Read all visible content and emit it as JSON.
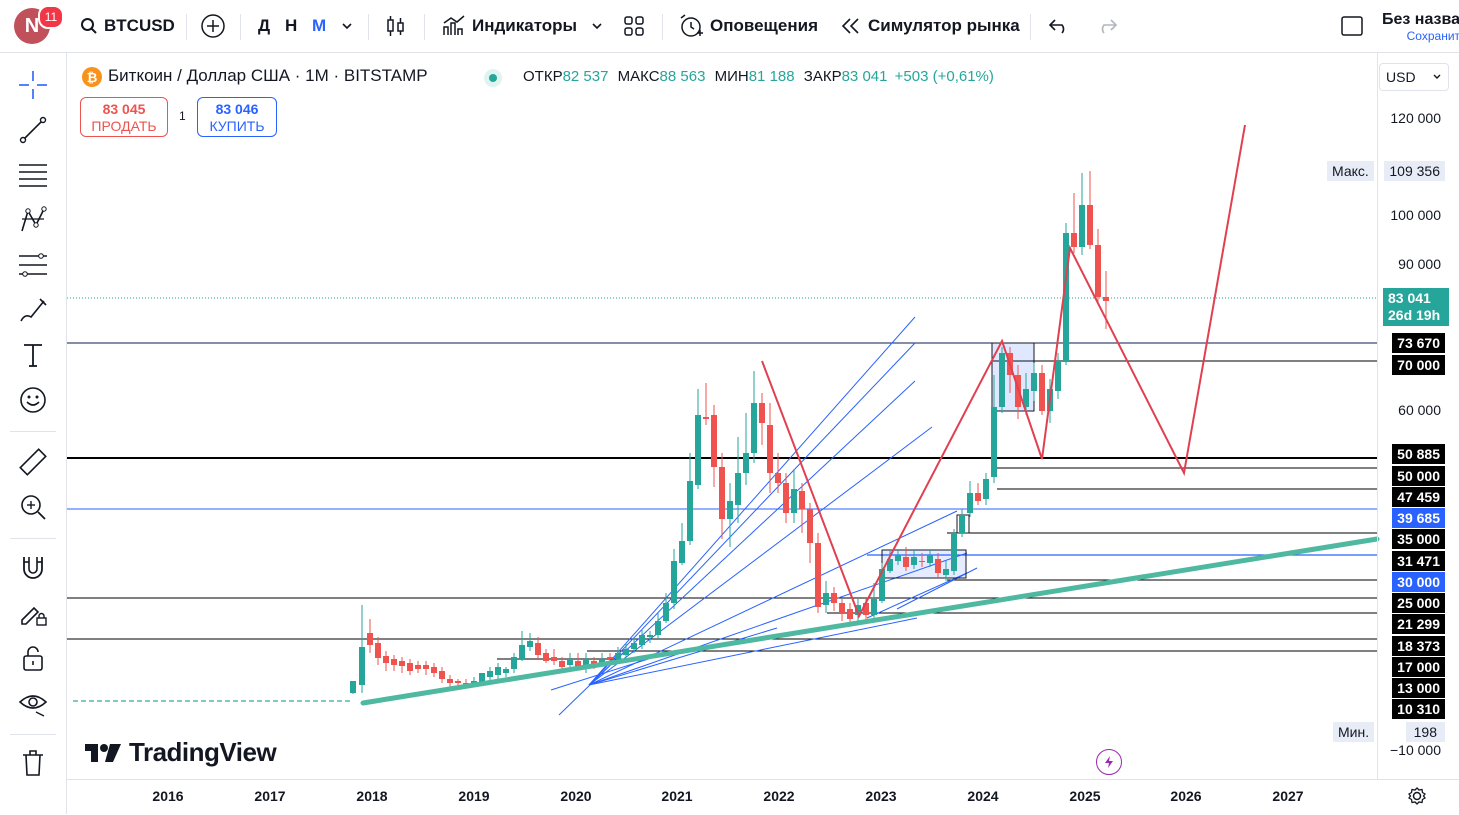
{
  "topbar": {
    "avatar_letter": "N",
    "notifications": "11",
    "symbol": "BTCUSD",
    "intervals": [
      "Д",
      "Н",
      "М"
    ],
    "indicators": "Индикаторы",
    "alerts": "Оповещения",
    "replay": "Симулятор рынка",
    "layout_title": "Без назва",
    "layout_status": "Сохранит"
  },
  "legend": {
    "title": "Биткоин / Доллар США · 1М · BITSTAMP",
    "open_label": "ОТКР",
    "open": "82 537",
    "high_label": "МАКС",
    "high": "88 563",
    "low_label": "МИН",
    "low": "81 188",
    "close_label": "ЗАКР",
    "close": "83 041",
    "change": "+503 (+0,61%)"
  },
  "trade": {
    "sell_price": "83 045",
    "sell_label": "ПРОДАТЬ",
    "spread": "1",
    "buy_price": "83 046",
    "buy_label": "КУПИТЬ"
  },
  "currency": "USD",
  "price_axis": {
    "ticks": [
      "120 000",
      "100 000",
      "90 000",
      "60 000",
      "−10 000"
    ],
    "max_label": "Макс.",
    "max_value": "109 356",
    "min_label": "Мин.",
    "min_value": "198",
    "last_price": "83 041",
    "countdown": "26d 19h",
    "levels": [
      {
        "text": "73 670",
        "bg": "#0d1b4c"
      },
      {
        "text": "70 000",
        "bg": "#000000"
      },
      {
        "text": "50 885",
        "bg": "#000000"
      },
      {
        "text": "50 000",
        "bg": "#000000"
      },
      {
        "text": "47 459",
        "bg": "#000000"
      },
      {
        "text": "39 685",
        "bg": "#2962ff"
      },
      {
        "text": "35 000",
        "bg": "#000000"
      },
      {
        "text": "31 471",
        "bg": "#000000"
      },
      {
        "text": "30 000",
        "bg": "#2962ff"
      },
      {
        "text": "25 000",
        "bg": "#000000"
      },
      {
        "text": "21 299",
        "bg": "#000000"
      },
      {
        "text": "18 373",
        "bg": "#000000"
      },
      {
        "text": "17 000",
        "bg": "#000000"
      },
      {
        "text": "13 000",
        "bg": "#000000"
      },
      {
        "text": "10 310",
        "bg": "#000000"
      }
    ]
  },
  "time_axis": [
    "2016",
    "2017",
    "2018",
    "2019",
    "2020",
    "2021",
    "2022",
    "2023",
    "2024",
    "2025",
    "2026",
    "2027"
  ],
  "watermark": "TradingView",
  "colors": {
    "up": "#26a69a",
    "down": "#ef5350",
    "trend": "#4fb8a0",
    "fan": "#2962ff",
    "path": "#e04050"
  },
  "left_tools": [
    "crosshair-icon",
    "trendline-icon",
    "fib-icon",
    "pattern-icon",
    "projection-icon",
    "brush-icon",
    "text-icon",
    "emoji-icon",
    "ruler-icon",
    "zoom-icon",
    "magnet-icon",
    "lock-drawing-icon",
    "lock-icon",
    "eye-icon",
    "trash-icon"
  ]
}
